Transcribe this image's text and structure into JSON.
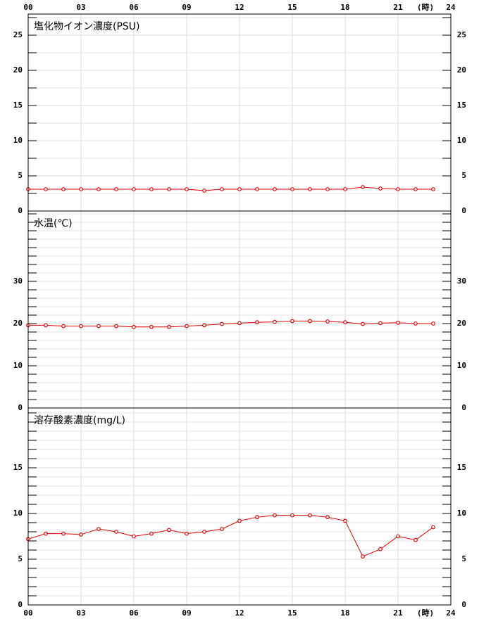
{
  "chart_data": [
    {
      "type": "line",
      "title": "塩化物イオン濃度(PSU)",
      "x": [
        0,
        1,
        2,
        3,
        4,
        5,
        6,
        7,
        8,
        9,
        10,
        11,
        12,
        13,
        14,
        15,
        16,
        17,
        18,
        19,
        20,
        21,
        22,
        23
      ],
      "values": [
        3.1,
        3.1,
        3.1,
        3.1,
        3.1,
        3.1,
        3.1,
        3.1,
        3.1,
        3.1,
        2.9,
        3.1,
        3.1,
        3.1,
        3.1,
        3.1,
        3.1,
        3.1,
        3.1,
        3.4,
        3.2,
        3.1,
        3.1,
        3.1
      ],
      "color": "#e00000",
      "xlim": [
        0,
        24
      ],
      "xticks": [
        {
          "value": 0,
          "label": "00"
        },
        {
          "value": 3,
          "label": "03"
        },
        {
          "value": 6,
          "label": "06"
        },
        {
          "value": 9,
          "label": "09"
        },
        12,
        15,
        18,
        21,
        24
      ],
      "x_unit_label": "(時)",
      "ylim": [
        0,
        28
      ],
      "yticks": [
        0,
        5,
        10,
        15,
        20,
        25
      ],
      "yminor": [
        2.5,
        7.5,
        12.5,
        17.5,
        22.5,
        27.5
      ]
    },
    {
      "type": "line",
      "title": "水温(℃)",
      "x": [
        0,
        1,
        2,
        3,
        4,
        5,
        6,
        7,
        8,
        9,
        10,
        11,
        12,
        13,
        14,
        15,
        16,
        17,
        18,
        19,
        20,
        21,
        22,
        23
      ],
      "values": [
        19.6,
        19.6,
        19.4,
        19.4,
        19.4,
        19.4,
        19.2,
        19.2,
        19.2,
        19.4,
        19.6,
        19.9,
        20.1,
        20.3,
        20.4,
        20.6,
        20.6,
        20.5,
        20.3,
        19.9,
        20.1,
        20.2,
        20.0,
        20.0
      ],
      "color": "#e00000",
      "xlim": [
        0,
        24
      ],
      "ylim": [
        0,
        46.67
      ],
      "yticks": [
        0,
        10,
        20,
        30
      ],
      "yminor": [
        2,
        4,
        6,
        8,
        12,
        14,
        16,
        18,
        22,
        24,
        26,
        28,
        32,
        34,
        36,
        38,
        40,
        42,
        44,
        46
      ]
    },
    {
      "type": "line",
      "title": "溶存酸素濃度(mg/L)",
      "x": [
        0,
        1,
        2,
        3,
        4,
        5,
        6,
        7,
        8,
        9,
        10,
        11,
        12,
        13,
        14,
        15,
        16,
        17,
        18,
        19,
        20,
        21,
        22,
        23
      ],
      "values": [
        7.2,
        7.8,
        7.8,
        7.7,
        8.3,
        8.0,
        7.5,
        7.8,
        8.2,
        7.8,
        8.0,
        8.3,
        9.2,
        9.6,
        9.8,
        9.8,
        9.8,
        9.6,
        9.2,
        5.3,
        6.1,
        7.5,
        7.1,
        8.5
      ],
      "color": "#e00000",
      "xlim": [
        0,
        24
      ],
      "ylim": [
        0,
        21.54
      ],
      "yticks": [
        0,
        5,
        10,
        15
      ],
      "yminor": [
        1,
        2,
        3,
        4,
        6,
        7,
        8,
        9,
        11,
        12,
        13,
        14,
        16,
        17,
        18,
        19,
        20,
        21
      ]
    }
  ]
}
